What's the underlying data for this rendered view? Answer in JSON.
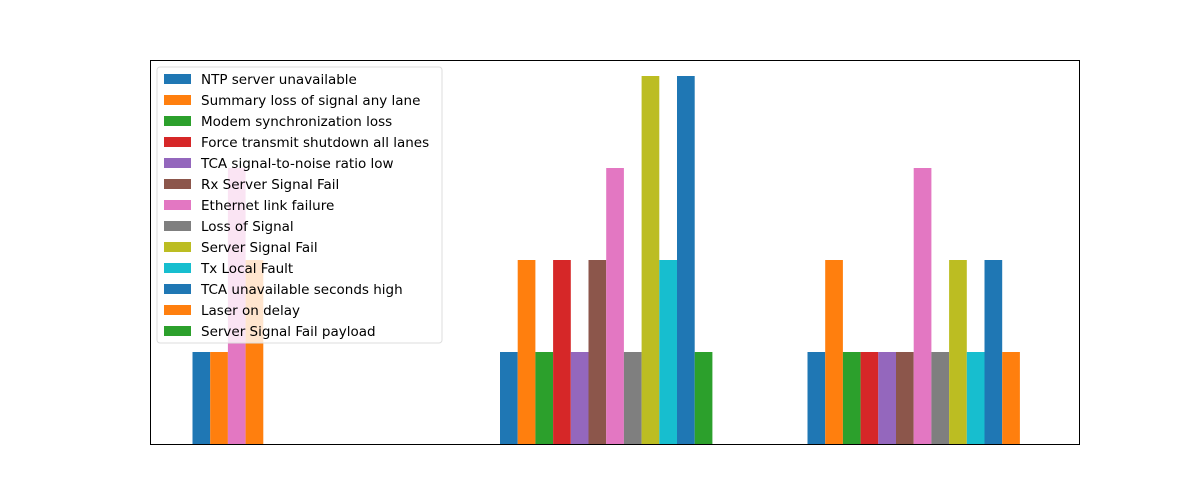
{
  "chart_data": {
    "type": "bar",
    "title": "",
    "xlabel": "",
    "ylabel": "",
    "axes_visible": false,
    "ylim": [
      0,
      4.2
    ],
    "legend_position": "upper-left",
    "groups": [
      {
        "bars": [
          {
            "series": "NTP server unavailable",
            "value": 1
          },
          {
            "series": "Summary loss of signal any lane",
            "value": 1
          },
          {
            "series": "Ethernet link failure",
            "value": 3
          },
          {
            "series": "Laser on delay",
            "value": 2
          }
        ]
      },
      {
        "bars": [
          {
            "series": "NTP server unavailable",
            "value": 1
          },
          {
            "series": "Summary loss of signal any lane",
            "value": 2
          },
          {
            "series": "Modem synchronization loss",
            "value": 1
          },
          {
            "series": "Force transmit shutdown all lanes",
            "value": 2
          },
          {
            "series": "TCA signal-to-noise ratio low",
            "value": 1
          },
          {
            "series": "Rx Server Signal Fail",
            "value": 2
          },
          {
            "series": "Ethernet link failure",
            "value": 3
          },
          {
            "series": "Loss of Signal",
            "value": 1
          },
          {
            "series": "Server Signal Fail",
            "value": 4
          },
          {
            "series": "Tx Local Fault",
            "value": 2
          },
          {
            "series": "TCA unavailable seconds high",
            "value": 4
          },
          {
            "series": "Server Signal Fail payload",
            "value": 1
          }
        ]
      },
      {
        "bars": [
          {
            "series": "NTP server unavailable",
            "value": 1
          },
          {
            "series": "Summary loss of signal any lane",
            "value": 2
          },
          {
            "series": "Modem synchronization loss",
            "value": 1
          },
          {
            "series": "Force transmit shutdown all lanes",
            "value": 1
          },
          {
            "series": "TCA signal-to-noise ratio low",
            "value": 1
          },
          {
            "series": "Rx Server Signal Fail",
            "value": 1
          },
          {
            "series": "Ethernet link failure",
            "value": 3
          },
          {
            "series": "Loss of Signal",
            "value": 1
          },
          {
            "series": "Server Signal Fail",
            "value": 2
          },
          {
            "series": "Tx Local Fault",
            "value": 1
          },
          {
            "series": "TCA unavailable seconds high",
            "value": 2
          },
          {
            "series": "Laser on delay",
            "value": 1
          }
        ]
      }
    ],
    "series": [
      {
        "name": "NTP server unavailable",
        "color": "#1f77b4"
      },
      {
        "name": "Summary loss of signal any lane",
        "color": "#ff7f0e"
      },
      {
        "name": "Modem synchronization loss",
        "color": "#2ca02c"
      },
      {
        "name": "Force transmit shutdown all lanes",
        "color": "#d62728"
      },
      {
        "name": "TCA signal-to-noise ratio low",
        "color": "#9467bd"
      },
      {
        "name": "Rx Server Signal Fail",
        "color": "#8c564b"
      },
      {
        "name": "Ethernet link failure",
        "color": "#e377c2"
      },
      {
        "name": "Loss of Signal",
        "color": "#7f7f7f"
      },
      {
        "name": "Server Signal Fail",
        "color": "#bcbd22"
      },
      {
        "name": "Tx Local Fault",
        "color": "#17becf"
      },
      {
        "name": "TCA unavailable seconds high",
        "color": "#1f77b4"
      },
      {
        "name": "Laser on delay",
        "color": "#ff7f0e"
      },
      {
        "name": "Server Signal Fail payload",
        "color": "#2ca02c"
      }
    ]
  }
}
